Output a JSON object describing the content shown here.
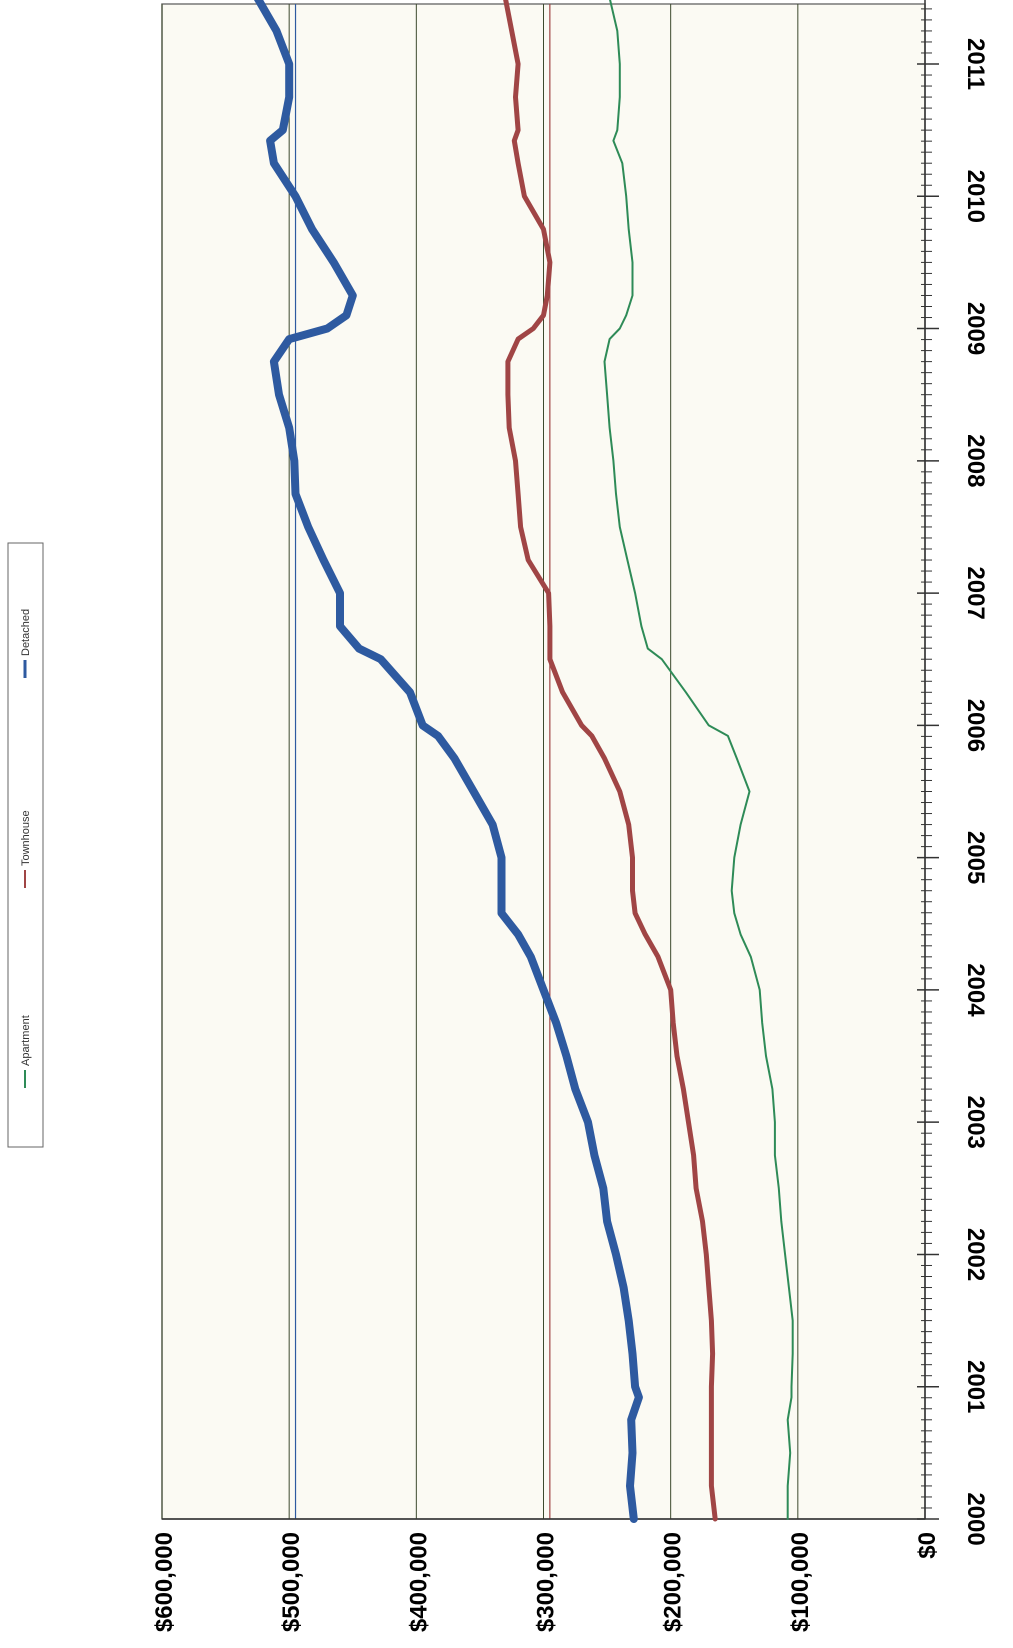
{
  "chart_data": {
    "type": "line",
    "orientation": "rotated-90",
    "title": "",
    "xlabel": "",
    "ylabel": "",
    "x_tick_labels": [
      "2000",
      "2001",
      "2002",
      "2003",
      "2004",
      "2005",
      "2006",
      "2007",
      "2008",
      "2009",
      "2010",
      "2011"
    ],
    "y_tick_labels": [
      "$0",
      "$100,000",
      "$200,000",
      "$300,000",
      "$400,000",
      "$500,000",
      "$600,000"
    ],
    "xlim": [
      2000,
      2011.5
    ],
    "ylim": [
      0,
      600000
    ],
    "y_grid": true,
    "x_minor_ticks": "monthly",
    "legend_position": "left",
    "reference_lines": [
      {
        "series": "Detached",
        "value": 495000
      },
      {
        "series": "Townhouse",
        "value": 295000
      }
    ],
    "x": [
      2000.0,
      2000.25,
      2000.5,
      2000.75,
      2000.92,
      2001.0,
      2001.25,
      2001.5,
      2001.75,
      2002.0,
      2002.25,
      2002.5,
      2002.75,
      2003.0,
      2003.25,
      2003.5,
      2003.75,
      2004.0,
      2004.25,
      2004.42,
      2004.58,
      2004.75,
      2005.0,
      2005.25,
      2005.5,
      2005.75,
      2005.92,
      2006.0,
      2006.25,
      2006.5,
      2006.58,
      2006.75,
      2007.0,
      2007.25,
      2007.5,
      2007.75,
      2008.0,
      2008.25,
      2008.5,
      2008.75,
      2008.92,
      2009.0,
      2009.1,
      2009.25,
      2009.5,
      2009.75,
      2010.0,
      2010.25,
      2010.42,
      2010.5,
      2010.75,
      2011.0,
      2011.25,
      2011.5
    ],
    "series": [
      {
        "name": "Detached",
        "color": "#2e5aa0",
        "values": [
          229000,
          232000,
          230000,
          231000,
          225000,
          228000,
          230000,
          233000,
          237000,
          243000,
          250000,
          253000,
          260000,
          265000,
          275000,
          282000,
          290000,
          300000,
          310000,
          320000,
          333000,
          333000,
          333000,
          340000,
          355000,
          370000,
          383000,
          395000,
          405000,
          428000,
          445000,
          460000,
          460000,
          473000,
          485000,
          495000,
          496000,
          500000,
          508000,
          512000,
          500000,
          470000,
          455000,
          450000,
          465000,
          482000,
          495000,
          512000,
          515000,
          505000,
          500000,
          500000,
          510000,
          525000
        ]
      },
      {
        "name": "Townhouse",
        "color": "#a04545",
        "values": [
          165000,
          168000,
          168000,
          168000,
          168000,
          168000,
          167000,
          168000,
          170000,
          172000,
          175000,
          180000,
          182000,
          186000,
          190000,
          195000,
          198000,
          200000,
          210000,
          220000,
          228000,
          230000,
          230000,
          233000,
          240000,
          252000,
          262000,
          270000,
          285000,
          295000,
          295000,
          295000,
          296000,
          312000,
          318000,
          320000,
          322000,
          327000,
          328000,
          328000,
          320000,
          308000,
          300000,
          297000,
          295000,
          300000,
          315000,
          320000,
          323000,
          320000,
          322000,
          320000,
          325000,
          330000
        ]
      },
      {
        "name": "Apartment",
        "color": "#2e8b57",
        "values": [
          108000,
          108000,
          106000,
          108000,
          105000,
          105000,
          104000,
          104000,
          107000,
          110000,
          113000,
          115000,
          118000,
          118000,
          120000,
          125000,
          128000,
          130000,
          137000,
          145000,
          150000,
          152000,
          150000,
          145000,
          138000,
          148000,
          155000,
          170000,
          188000,
          207000,
          218000,
          223000,
          228000,
          234000,
          240000,
          243000,
          245000,
          248000,
          250000,
          252000,
          248000,
          240000,
          235000,
          230000,
          230000,
          233000,
          235000,
          238000,
          245000,
          242000,
          240000,
          240000,
          242000,
          248000
        ]
      }
    ]
  }
}
